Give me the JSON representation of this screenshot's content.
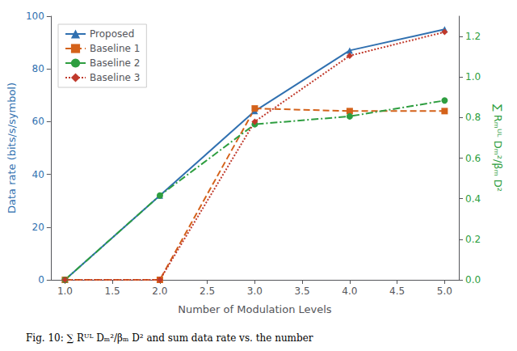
{
  "chart_data": {
    "type": "line",
    "x": [
      1,
      2,
      3,
      4,
      5
    ],
    "series": [
      {
        "name": "Proposed",
        "color": "#3070b0",
        "values": [
          0,
          32,
          64,
          87,
          95
        ],
        "marker": "triangle",
        "line_style": "solid"
      },
      {
        "name": "Baseline 1",
        "color": "#d4621a",
        "values": [
          0,
          0,
          65,
          64,
          64
        ],
        "marker": "square",
        "line_style": "dashed"
      },
      {
        "name": "Baseline 2",
        "color": "#2e9e40",
        "values": [
          0,
          32,
          59,
          62,
          68
        ],
        "marker": "circle",
        "line_style": "dashdot"
      },
      {
        "name": "Baseline 3",
        "color": "#c0392b",
        "values": [
          0,
          0,
          60,
          85,
          94
        ],
        "marker": "diamond",
        "line_style": "dotted"
      }
    ],
    "xlabel": "Number of Modulation Levels",
    "ylabel": "Data rate (bits/s/symbol)",
    "y2label": "∑ Rₘᵁᴸ Dₘ²/βₘ D²",
    "xlim": [
      0.85,
      5.15
    ],
    "xticks": [
      {
        "value": 1,
        "label": "1.0"
      },
      1.5,
      {
        "value": 2,
        "label": "2.0"
      },
      2.5,
      {
        "value": 3,
        "label": "3.0"
      },
      3.5,
      {
        "value": 4,
        "label": "4.0"
      },
      4.5,
      {
        "value": 5,
        "label": "5.0"
      }
    ],
    "ylim": [
      0,
      100
    ],
    "yticks": [
      0,
      20,
      40,
      60,
      80,
      100
    ],
    "y2lim": [
      0,
      1.3
    ],
    "y2ticks": [
      {
        "value": 0,
        "label": "0.0"
      },
      0.2,
      0.4,
      0.6,
      0.8,
      {
        "value": 1,
        "label": "1.0"
      },
      1.2
    ],
    "legend": "upper left",
    "grid": false,
    "caption": "Fig. 10: ∑ Rᵁᴸ Dₘ²/βₘ D² and sum data rate vs. the number"
  }
}
